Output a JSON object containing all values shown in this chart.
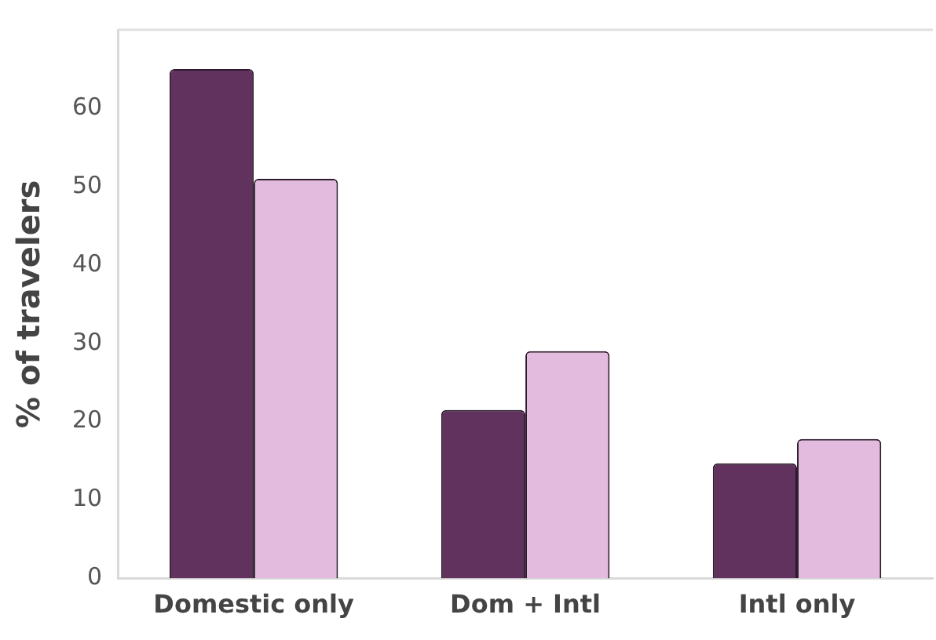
{
  "chart_data": {
    "type": "bar",
    "ylabel": "% of travelers",
    "categories": [
      "Domestic only",
      "Dom + Intl",
      "Intl only"
    ],
    "series": [
      {
        "color": "#62325e",
        "values": [
          65,
          21.5,
          14.7
        ]
      },
      {
        "color": "#e2bbdf",
        "values": [
          51,
          29,
          17.8
        ]
      }
    ],
    "ylim": [
      0,
      70
    ],
    "yticks": [
      0,
      10,
      20,
      30,
      40,
      50,
      60
    ],
    "grid": false,
    "legend": false
  }
}
